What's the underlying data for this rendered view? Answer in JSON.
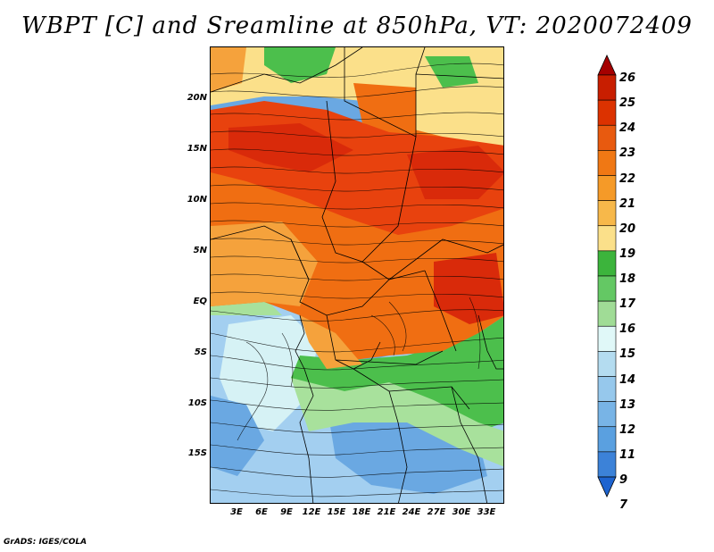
{
  "title": "WBPT [C] and Sreamline at 850hPa, VT: 2020072409",
  "footer": "GrADS: IGES/COLA",
  "map": {
    "lat_ticks": [
      "20N",
      "15N",
      "10N",
      "5N",
      "EQ",
      "5S",
      "10S",
      "15S"
    ],
    "lon_ticks": [
      "3E",
      "6E",
      "9E",
      "12E",
      "15E",
      "18E",
      "21E",
      "24E",
      "27E",
      "30E",
      "33E"
    ],
    "regions": [
      {
        "name": "warm-band",
        "color": "#e8420e"
      },
      {
        "name": "hot-core",
        "color": "#d92a0a"
      },
      {
        "name": "orange",
        "color": "#f06e12"
      },
      {
        "name": "light-orange",
        "color": "#f5a23c"
      },
      {
        "name": "yellow",
        "color": "#fbe08a"
      },
      {
        "name": "green",
        "color": "#4cbf4c"
      },
      {
        "name": "light-green",
        "color": "#a8e19c"
      },
      {
        "name": "pale-cyan",
        "color": "#d6f2f5"
      },
      {
        "name": "light-blue",
        "color": "#a3cff0"
      },
      {
        "name": "blue",
        "color": "#6aa8e2"
      }
    ]
  },
  "colorbar": {
    "levels": [
      "26",
      "25",
      "24",
      "23",
      "22",
      "21",
      "20",
      "19",
      "18",
      "17",
      "16",
      "15",
      "14",
      "13",
      "12",
      "11",
      "9",
      "7"
    ],
    "colors": [
      "#a50000",
      "#c81e00",
      "#dc3200",
      "#e85a0f",
      "#f07814",
      "#f59a28",
      "#f7b84a",
      "#fbe08a",
      "#3cb43c",
      "#64c864",
      "#a0dc96",
      "#e0f8f8",
      "#b4dcf0",
      "#96c8ec",
      "#78b4e6",
      "#5aa0e0",
      "#3c82d8",
      "#1e64d0"
    ]
  }
}
